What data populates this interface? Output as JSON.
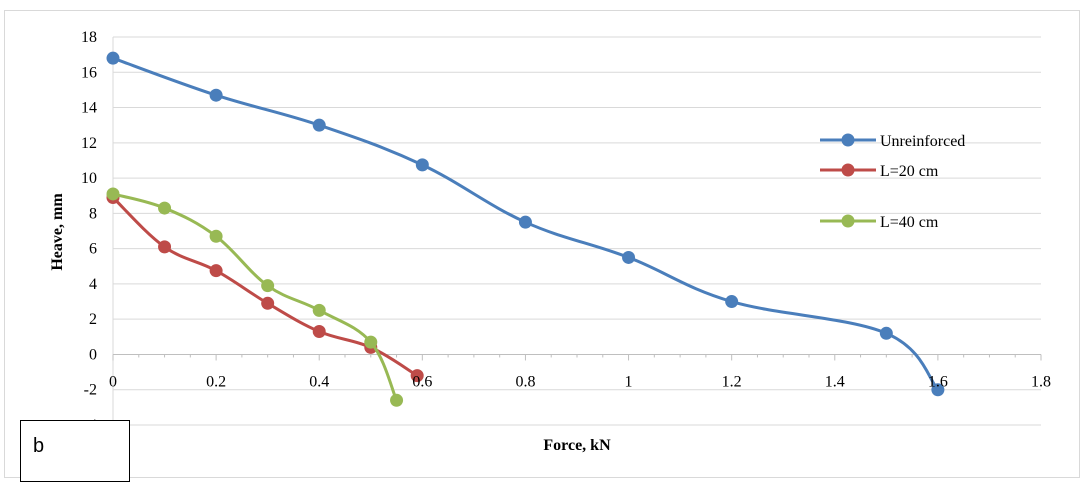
{
  "panel_label": "b",
  "chart_data": {
    "type": "line",
    "title": "",
    "xlabel": "Force, kN",
    "ylabel": "Heave, mm",
    "xlim": [
      0,
      1.8
    ],
    "ylim": [
      -4,
      18
    ],
    "xticks": [
      "0",
      "0.2",
      "0.4",
      "0.6",
      "0.8",
      "1",
      "1.2",
      "1.4",
      "1.6",
      "1.8"
    ],
    "yticks": [
      "-4",
      "-2",
      "0",
      "2",
      "4",
      "6",
      "8",
      "10",
      "12",
      "14",
      "16",
      "18"
    ],
    "grid": "horizontal",
    "legend_position": "right",
    "series": [
      {
        "name": "Unreinforced",
        "color": "#4a7ebb",
        "x": [
          0,
          0.2,
          0.4,
          0.6,
          0.8,
          1.0,
          1.2,
          1.5,
          1.6
        ],
        "y": [
          16.8,
          14.7,
          13.0,
          10.75,
          7.5,
          5.5,
          3.0,
          1.2,
          -2.0
        ]
      },
      {
        "name": "L=20 cm",
        "color": "#be4b48",
        "x": [
          0,
          0.1,
          0.2,
          0.3,
          0.4,
          0.5,
          0.59
        ],
        "y": [
          8.9,
          6.1,
          4.75,
          2.9,
          1.3,
          0.4,
          -1.2
        ]
      },
      {
        "name": "L=40 cm",
        "color": "#98b954",
        "x": [
          0,
          0.1,
          0.2,
          0.3,
          0.4,
          0.5,
          0.55
        ],
        "y": [
          9.1,
          8.3,
          6.7,
          3.9,
          2.5,
          0.7,
          -2.6
        ]
      }
    ]
  }
}
